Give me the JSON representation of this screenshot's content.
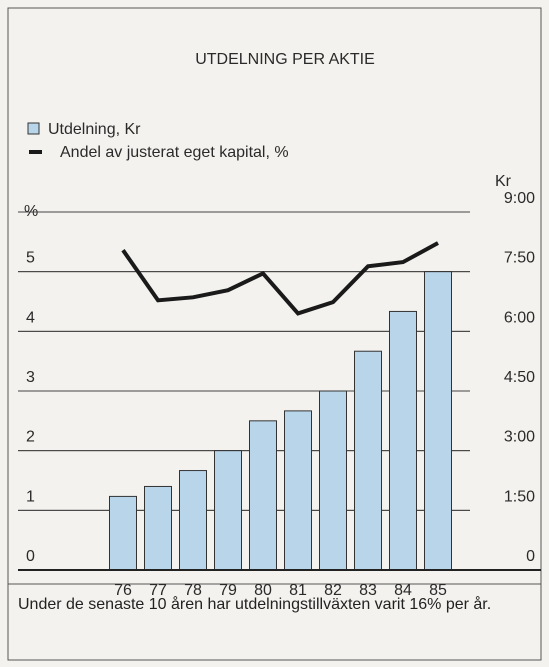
{
  "chart_data": {
    "type": "bar_line",
    "title": "UTDELNING PER AKTIE",
    "ylabel": "%",
    "y2label": "Kr",
    "categories": [
      "76",
      "77",
      "78",
      "79",
      "80",
      "81",
      "82",
      "83",
      "84",
      "85"
    ],
    "series": [
      {
        "name": "Utdelning, Kr",
        "color": "#b9d5ea",
        "type": "bar",
        "axis": "y2",
        "values": [
          1.85,
          2.1,
          2.5,
          3.0,
          3.75,
          4.0,
          4.5,
          5.5,
          6.5,
          7.5
        ]
      },
      {
        "name": "Andel av justerat eget kapital, %",
        "color": "#1a1a1a",
        "type": "line",
        "values": [
          5.36,
          4.52,
          4.57,
          4.69,
          4.97,
          4.3,
          4.49,
          5.09,
          5.16,
          5.48
        ]
      }
    ],
    "ylim": [
      0,
      6
    ],
    "yticks": [
      0,
      1,
      2,
      3,
      4,
      5
    ],
    "y2lim": [
      0,
      9
    ],
    "y2ticks": [
      0,
      {
        "value": 1.5,
        "label": "1:50"
      },
      {
        "value": 3,
        "label": "3:00"
      },
      {
        "value": 4.5,
        "label": "4:50"
      },
      {
        "value": 6,
        "label": "6:00"
      },
      {
        "value": 7.5,
        "label": "7:50"
      },
      {
        "value": 9,
        "label": "9:00"
      }
    ],
    "grid": true,
    "caption": "Under de senaste 10 åren har utdelningstillväxten varit 16% per år."
  }
}
